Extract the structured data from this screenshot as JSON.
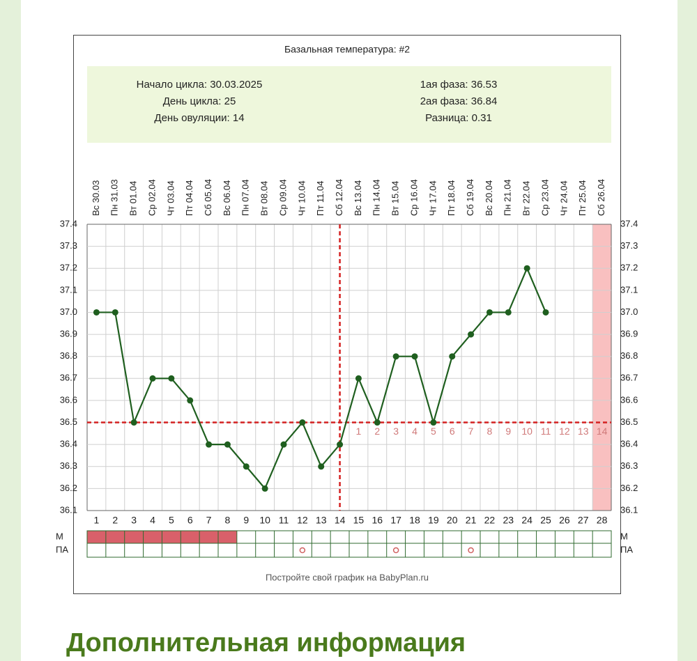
{
  "chart_data": {
    "type": "line",
    "title": "Базальная температура: #2",
    "info_left": [
      "Начало цикла: 30.03.2025",
      "День цикла: 25",
      "День овуляции: 14"
    ],
    "info_right": [
      "1ая фаза: 36.53",
      "2ая фаза: 36.84",
      "Разница: 0.31"
    ],
    "categories": [
      "Вс 30.03",
      "Пн 31.03",
      "Вт 01.04",
      "Ср 02.04",
      "Чт 03.04",
      "Пт 04.04",
      "Сб 05.04",
      "Вс 06.04",
      "Пн 07.04",
      "Вт 08.04",
      "Ср 09.04",
      "Чт 10.04",
      "Пт 11.04",
      "Сб 12.04",
      "Вс 13.04",
      "Пн 14.04",
      "Вт 15.04",
      "Ср 16.04",
      "Чт 17.04",
      "Пт 18.04",
      "Сб 19.04",
      "Вс 20.04",
      "Пн 21.04",
      "Вт 22.04",
      "Ср 23.04",
      "Чт 24.04",
      "Пт 25.04",
      "Сб 26.04"
    ],
    "days": [
      1,
      2,
      3,
      4,
      5,
      6,
      7,
      8,
      9,
      10,
      11,
      12,
      13,
      14,
      15,
      16,
      17,
      18,
      19,
      20,
      21,
      22,
      23,
      24,
      25,
      26,
      27,
      28
    ],
    "series": [
      {
        "name": "Температура",
        "color": "#1f5f1f",
        "values": [
          37.0,
          37.0,
          36.5,
          36.7,
          36.7,
          36.6,
          36.4,
          36.4,
          36.3,
          36.2,
          36.4,
          36.5,
          36.3,
          36.4,
          36.7,
          36.5,
          36.8,
          36.8,
          36.5,
          36.8,
          36.9,
          37.0,
          37.0,
          37.2,
          37.0,
          null,
          null,
          null
        ]
      }
    ],
    "ylim": [
      36.1,
      37.4
    ],
    "yticks": [
      36.1,
      36.2,
      36.3,
      36.4,
      36.5,
      36.6,
      36.7,
      36.8,
      36.9,
      {
        "value": 37.0,
        "label": "37.0"
      },
      37.1,
      37.2,
      37.3,
      37.4
    ],
    "grid": true,
    "coverline": 36.5,
    "ovulation_day": 14,
    "phase2_labels": [
      1,
      2,
      3,
      4,
      5,
      6,
      7,
      8,
      9,
      10,
      11,
      12,
      13,
      14
    ],
    "highlight_days": [
      28
    ],
    "row_labels": [
      "М",
      "ПА"
    ],
    "menstruation_days": [
      1,
      2,
      3,
      4,
      5,
      6,
      7,
      8
    ],
    "intercourse_days": [
      12,
      17,
      21
    ],
    "footer": "Постройте свой график на BabyPlan.ru"
  },
  "section_title": "Дополнительная информация"
}
